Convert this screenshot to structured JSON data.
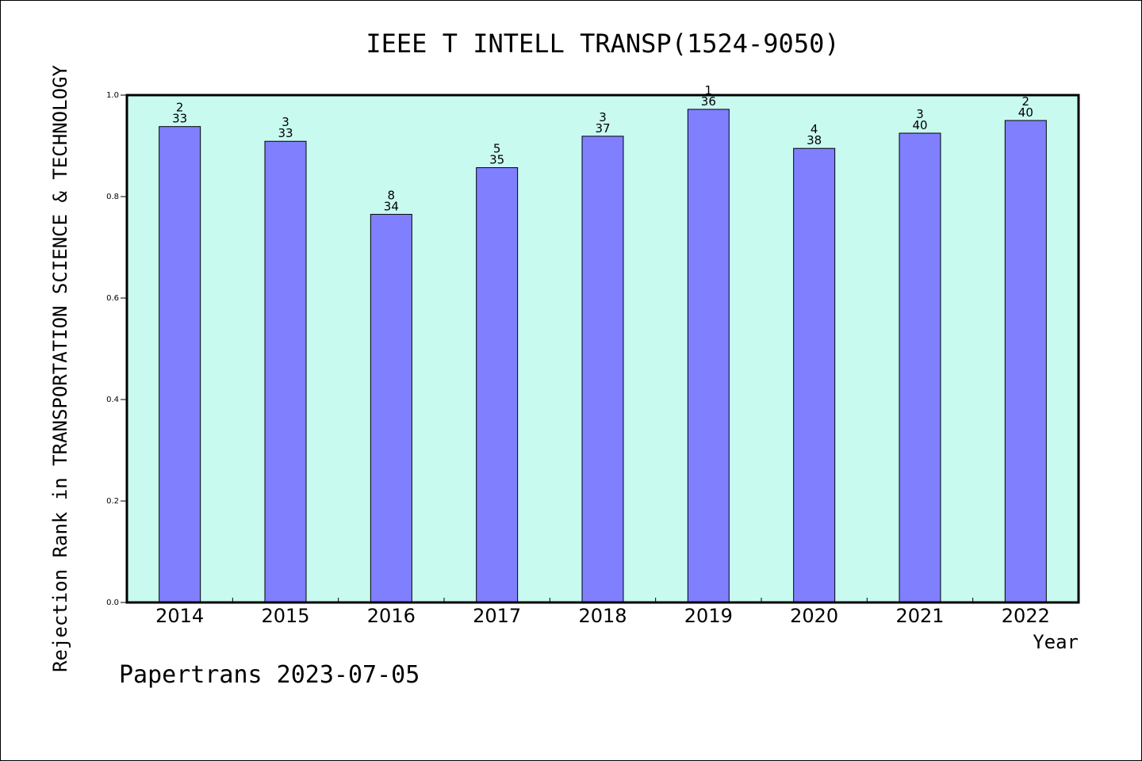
{
  "chart_data": {
    "type": "bar",
    "title": "IEEE T INTELL TRANSP(1524-9050)",
    "xlabel": "Year",
    "ylabel": "Rejection Rank in TRANSPORTATION SCIENCE & TECHNOLOGY",
    "categories": [
      "2014",
      "2015",
      "2016",
      "2017",
      "2018",
      "2019",
      "2020",
      "2021",
      "2022"
    ],
    "values": [
      0.938,
      0.909,
      0.765,
      0.857,
      0.919,
      0.972,
      0.895,
      0.925,
      0.95
    ],
    "rank_labels": [
      "2",
      "3",
      "8",
      "5",
      "3",
      "1",
      "4",
      "3",
      "2"
    ],
    "total_labels": [
      "33",
      "33",
      "34",
      "35",
      "37",
      "36",
      "38",
      "40",
      "40"
    ],
    "ylim": [
      0,
      1.0
    ],
    "yticks": [
      "0.0",
      "0.2",
      "0.4",
      "0.6",
      "0.8",
      "1.0"
    ],
    "grid": false,
    "colors": {
      "plot_background": "#c8faf0",
      "bar": "#8080ff",
      "bar_edge": "#000000"
    }
  },
  "footer": "Papertrans 2023-07-05"
}
